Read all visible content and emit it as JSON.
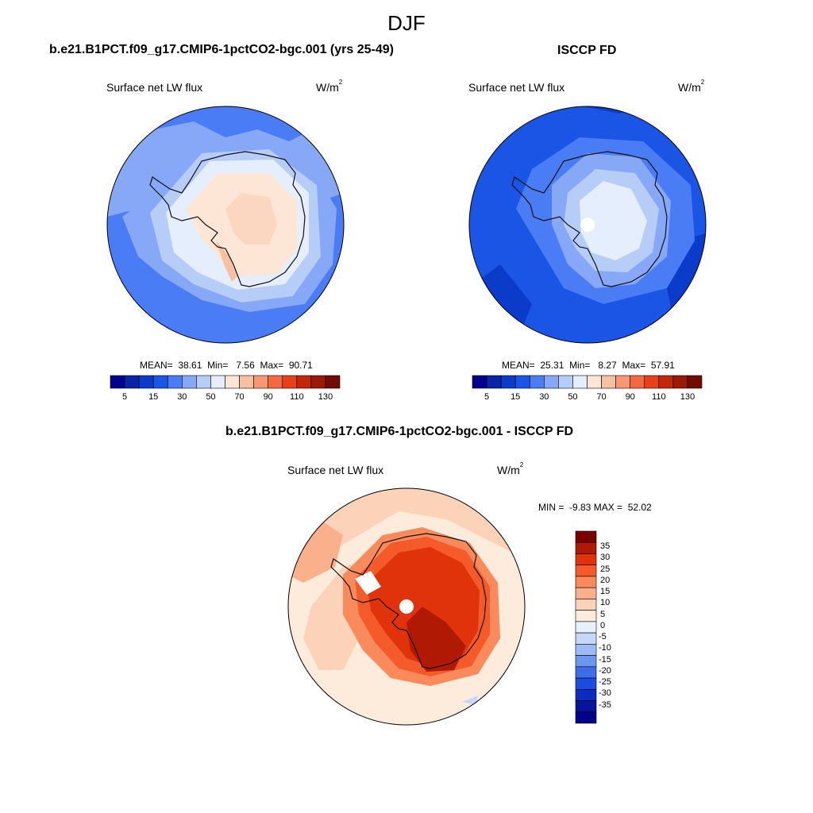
{
  "figure": {
    "title": "DJF"
  },
  "panels": [
    {
      "title": "b.e21.B1PCT.f09_g17.CMIP6-1pctCO2-bgc.001 (yrs 25-49)",
      "field_label": "Surface net LW flux",
      "units_base": "W/m",
      "units_exp": "2",
      "stats": {
        "mean_label": "MEAN=",
        "mean": "38.61",
        "min_label": "Min=",
        "min": "7.56",
        "max_label": "Max=",
        "max": "90.71"
      },
      "colorbar": {
        "colors": [
          "#00008f",
          "#0a24a8",
          "#0b3cc9",
          "#1a55e6",
          "#4a7cf5",
          "#86a8f7",
          "#b6cdf8",
          "#e5eefc",
          "#fde6d6",
          "#f8c0a3",
          "#f79873",
          "#f5693e",
          "#e8411a",
          "#c4260a",
          "#9a1a06",
          "#720c02"
        ],
        "labels": [
          "5",
          "15",
          "30",
          "50",
          "70",
          "90",
          "110",
          "130"
        ]
      }
    },
    {
      "title": "ISCCP FD",
      "field_label": "Surface net LW flux",
      "units_base": "W/m",
      "units_exp": "2",
      "stats": {
        "mean_label": "MEAN=",
        "mean": "25.31",
        "min_label": "Min=",
        "min": "8.27",
        "max_label": "Max=",
        "max": "57.91"
      },
      "colorbar": {
        "colors": [
          "#00008f",
          "#0a24a8",
          "#0b3cc9",
          "#1a55e6",
          "#4a7cf5",
          "#86a8f7",
          "#b6cdf8",
          "#e5eefc",
          "#fde6d6",
          "#f8c0a3",
          "#f79873",
          "#f5693e",
          "#e8411a",
          "#c4260a",
          "#9a1a06",
          "#720c02"
        ],
        "labels": [
          "5",
          "15",
          "30",
          "50",
          "70",
          "90",
          "110",
          "130"
        ]
      }
    },
    {
      "title": "b.e21.B1PCT.f09_g17.CMIP6-1pctCO2-bgc.001 - ISCCP FD",
      "field_label": "Surface net LW flux",
      "units_base": "W/m",
      "units_exp": "2",
      "minmax": "MIN =  -9.83 MAX =  52.02",
      "colorbar": {
        "colors": [
          "#7a0000",
          "#b01a04",
          "#e0330c",
          "#f55a2a",
          "#f98a5c",
          "#fbb08c",
          "#fcd2b8",
          "#fdebdc",
          "#e8f0fc",
          "#c6d8f8",
          "#9dbcf5",
          "#6c97ef",
          "#3d6ee8",
          "#1c4be0",
          "#0a2dc0",
          "#04159a",
          "#00008a"
        ],
        "labels": [
          "35",
          "30",
          "25",
          "20",
          "15",
          "10",
          "5",
          "0",
          "-5",
          "-10",
          "-15",
          "-20",
          "-25",
          "-30",
          "-35"
        ]
      }
    }
  ]
}
